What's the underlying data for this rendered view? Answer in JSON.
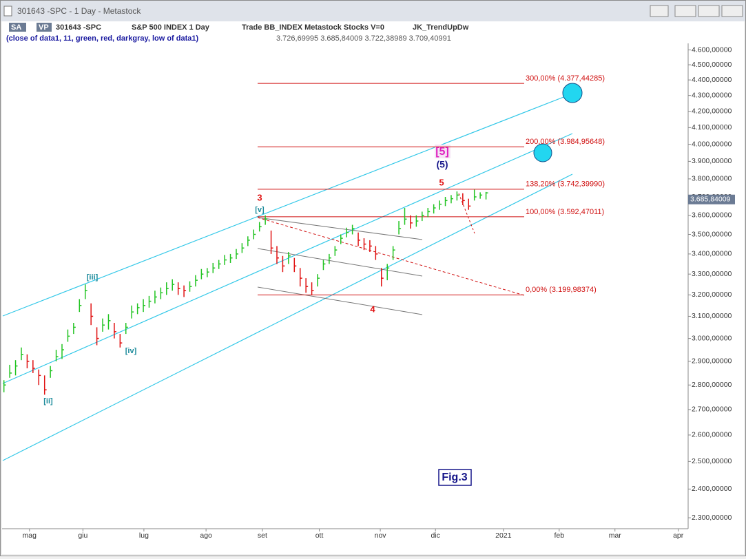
{
  "window": {
    "title": "301643 -SPC - 1 Day - Metastock",
    "toolbar": [
      "SA",
      "VP",
      "301643 -SPC",
      "S&P 500 INDEX  1 Day",
      "Trade  BB_INDEX  Metastock  Stocks  V=0",
      "JK_TrendUpDw"
    ],
    "indicator": "(close of data1, 11, green, red, darkgray, low of data1)",
    "indicator_values": "3.726,69995  3.685,84009  3.722,38989  3.709,40991"
  },
  "chart_data": {
    "type": "ohlc",
    "log_scale": true,
    "up_color": "#22c422",
    "down_color": "#e01010",
    "level_color": "#d01010",
    "close": [
      2800,
      2850,
      2880,
      2930,
      2900,
      2870,
      2840,
      2780,
      2860,
      2920,
      2950,
      3010,
      3050,
      3150,
      3220,
      3100,
      3000,
      3060,
      3080,
      3030,
      2980,
      3050,
      3120,
      3140,
      3150,
      3170,
      3190,
      3210,
      3230,
      3250,
      3230,
      3220,
      3240,
      3270,
      3300,
      3310,
      3330,
      3350,
      3370,
      3380,
      3400,
      3430,
      3470,
      3500,
      3540,
      3580,
      3430,
      3380,
      3340,
      3390,
      3340,
      3280,
      3240,
      3220,
      3280,
      3350,
      3380,
      3420,
      3480,
      3510,
      3530,
      3470,
      3450,
      3440,
      3400,
      3280,
      3330,
      3420,
      3530,
      3580,
      3560,
      3570,
      3600,
      3620,
      3640,
      3660,
      3680,
      3690,
      3710,
      3680,
      3650,
      3700,
      3710,
      3722
    ],
    "high": [
      2820,
      2885,
      2905,
      2960,
      2930,
      2905,
      2865,
      2840,
      2880,
      2950,
      2975,
      3040,
      3070,
      3180,
      3250,
      3160,
      3050,
      3090,
      3110,
      3070,
      3020,
      3070,
      3150,
      3160,
      3180,
      3195,
      3220,
      3235,
      3260,
      3275,
      3260,
      3245,
      3265,
      3295,
      3325,
      3330,
      3355,
      3370,
      3395,
      3400,
      3425,
      3455,
      3490,
      3525,
      3565,
      3600,
      3520,
      3440,
      3390,
      3410,
      3380,
      3330,
      3280,
      3260,
      3300,
      3370,
      3400,
      3440,
      3500,
      3535,
      3550,
      3510,
      3480,
      3470,
      3440,
      3330,
      3350,
      3440,
      3570,
      3640,
      3600,
      3600,
      3620,
      3640,
      3660,
      3680,
      3700,
      3710,
      3730,
      3720,
      3690,
      3740,
      3725,
      3727
    ],
    "low": [
      2770,
      2830,
      2840,
      2905,
      2870,
      2850,
      2800,
      2760,
      2830,
      2900,
      2910,
      2985,
      3020,
      3120,
      3180,
      3060,
      2970,
      3030,
      3040,
      3000,
      2960,
      3020,
      3090,
      3110,
      3120,
      3140,
      3160,
      3180,
      3200,
      3220,
      3200,
      3190,
      3215,
      3240,
      3275,
      3285,
      3305,
      3325,
      3345,
      3355,
      3375,
      3405,
      3440,
      3475,
      3515,
      3550,
      3400,
      3350,
      3310,
      3350,
      3310,
      3240,
      3210,
      3200,
      3240,
      3320,
      3350,
      3390,
      3450,
      3485,
      3500,
      3440,
      3420,
      3410,
      3370,
      3240,
      3270,
      3370,
      3500,
      3550,
      3530,
      3540,
      3570,
      3590,
      3610,
      3630,
      3650,
      3665,
      3680,
      3655,
      3630,
      3680,
      3690,
      3686
    ],
    "ylim": [
      2263,
      4645
    ],
    "yticks": [
      {
        "value": 2300,
        "label": "2.300,00000"
      },
      {
        "value": 2400,
        "label": "2.400,00000"
      },
      {
        "value": 2500,
        "label": "2.500,00000"
      },
      {
        "value": 2600,
        "label": "2.600,00000"
      },
      {
        "value": 2700,
        "label": "2.700,00000"
      },
      {
        "value": 2800,
        "label": "2.800,00000"
      },
      {
        "value": 2900,
        "label": "2.900,00000"
      },
      {
        "value": 3000,
        "label": "3.000,00000"
      },
      {
        "value": 3100,
        "label": "3.100,00000"
      },
      {
        "value": 3200,
        "label": "3.200,00000"
      },
      {
        "value": 3300,
        "label": "3.300,00000"
      },
      {
        "value": 3400,
        "label": "3.400,00000"
      },
      {
        "value": 3500,
        "label": "3.500,00000"
      },
      {
        "value": 3600,
        "label": "3.600,00000"
      },
      {
        "value": 3700,
        "label": "3.700,00000"
      },
      {
        "value": 3800,
        "label": "3.800,00000"
      },
      {
        "value": 3900,
        "label": "3.900,00000"
      },
      {
        "value": 4000,
        "label": "4.000,00000"
      },
      {
        "value": 4100,
        "label": "4.100,00000"
      },
      {
        "value": 4200,
        "label": "4.200,00000"
      },
      {
        "value": 4300,
        "label": "4.300,00000"
      },
      {
        "value": 4400,
        "label": "4.400,00000"
      },
      {
        "value": 4500,
        "label": "4.500,00000"
      },
      {
        "value": 4600,
        "label": "4.600,00000"
      }
    ],
    "xlim": [
      0,
      118
    ],
    "xticks": [
      {
        "value": 4.6,
        "label": "mag"
      },
      {
        "value": 13.8,
        "label": "giu"
      },
      {
        "value": 24.3,
        "label": "lug"
      },
      {
        "value": 35,
        "label": "ago"
      },
      {
        "value": 44.7,
        "label": "set"
      },
      {
        "value": 54.5,
        "label": "ott"
      },
      {
        "value": 65,
        "label": "nov"
      },
      {
        "value": 74.5,
        "label": "dic"
      },
      {
        "value": 86.2,
        "label": "2021"
      },
      {
        "value": 95.8,
        "label": "feb"
      },
      {
        "value": 105.4,
        "label": "mar"
      },
      {
        "value": 116.3,
        "label": "apr"
      }
    ],
    "levels": [
      {
        "value": 4377.44285,
        "label": "300,00% (4.377,44285)"
      },
      {
        "value": 3984.95648,
        "label": "200,00% (3.984,95648)"
      },
      {
        "value": 3742.3999,
        "label": "138,20% (3.742,39990)"
      },
      {
        "value": 3592.47011,
        "label": "100,00% (3.592,47011)"
      },
      {
        "value": 3199.98374,
        "label": "0,00% (3.199,98374)"
      }
    ],
    "last_price": {
      "value": 3685.84009,
      "label": "3.685,84009"
    },
    "waves": [
      "[ii]",
      "[iii]",
      "[iv]",
      "[v]",
      "3",
      "4",
      "5",
      "(5)",
      "[5]"
    ],
    "figure_label": "Fig.3"
  }
}
